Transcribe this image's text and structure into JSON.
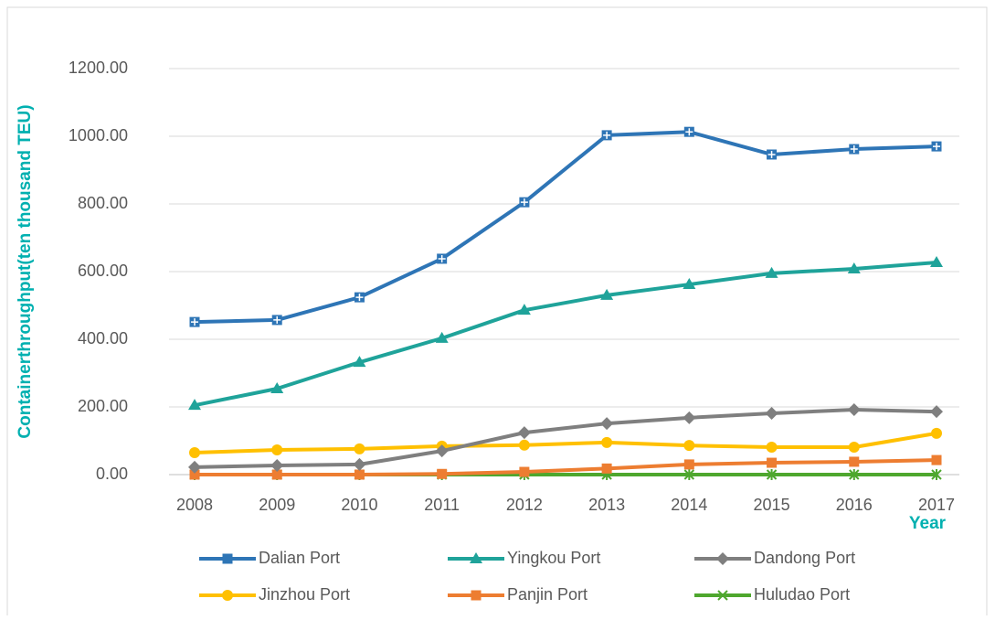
{
  "chart_data": {
    "type": "line",
    "y_label": "Containerthroughput(ten thousand TEU)",
    "x_label": "Year",
    "categories": [
      "2008",
      "2009",
      "2010",
      "2011",
      "2012",
      "2013",
      "2014",
      "2015",
      "2016",
      "2017"
    ],
    "ylim": [
      0,
      1200
    ],
    "yticks": [
      {
        "value": 0,
        "label": "0.00"
      },
      {
        "value": 200,
        "label": "200.00"
      },
      {
        "value": 400,
        "label": "400.00"
      },
      {
        "value": 600,
        "label": "600.00"
      },
      {
        "value": 800,
        "label": "800.00"
      },
      {
        "value": 1000,
        "label": "1000.00"
      },
      {
        "value": 1200,
        "label": "1200.00"
      }
    ],
    "grid": true,
    "legend": "bottom",
    "series": [
      {
        "name": "Dalian Port",
        "color": "#2e75b6",
        "marker": "square-cross",
        "values": [
          451,
          457,
          524,
          638,
          805,
          1003,
          1013,
          946,
          962,
          970
        ]
      },
      {
        "name": "Yingkou Port",
        "color": "#1fa39a",
        "marker": "triangle",
        "values": [
          205,
          254,
          332,
          403,
          486,
          530,
          562,
          595,
          608,
          627
        ]
      },
      {
        "name": "Dandong Port",
        "color": "#7f7f7f",
        "marker": "diamond",
        "values": [
          22,
          27,
          30,
          70,
          124,
          151,
          168,
          181,
          192,
          186
        ]
      },
      {
        "name": "Jinzhou Port",
        "color": "#ffc000",
        "marker": "circle",
        "values": [
          65,
          73,
          76,
          84,
          87,
          95,
          86,
          81,
          81,
          122
        ]
      },
      {
        "name": "Panjin Port",
        "color": "#ed7d31",
        "marker": "square",
        "values": [
          0,
          0,
          0,
          2,
          8,
          18,
          30,
          35,
          38,
          43
        ]
      },
      {
        "name": "Huludao Port",
        "color": "#4ea72e",
        "marker": "star",
        "values": [
          0,
          0,
          0,
          0,
          0,
          0,
          0,
          0,
          0,
          0
        ]
      }
    ]
  }
}
